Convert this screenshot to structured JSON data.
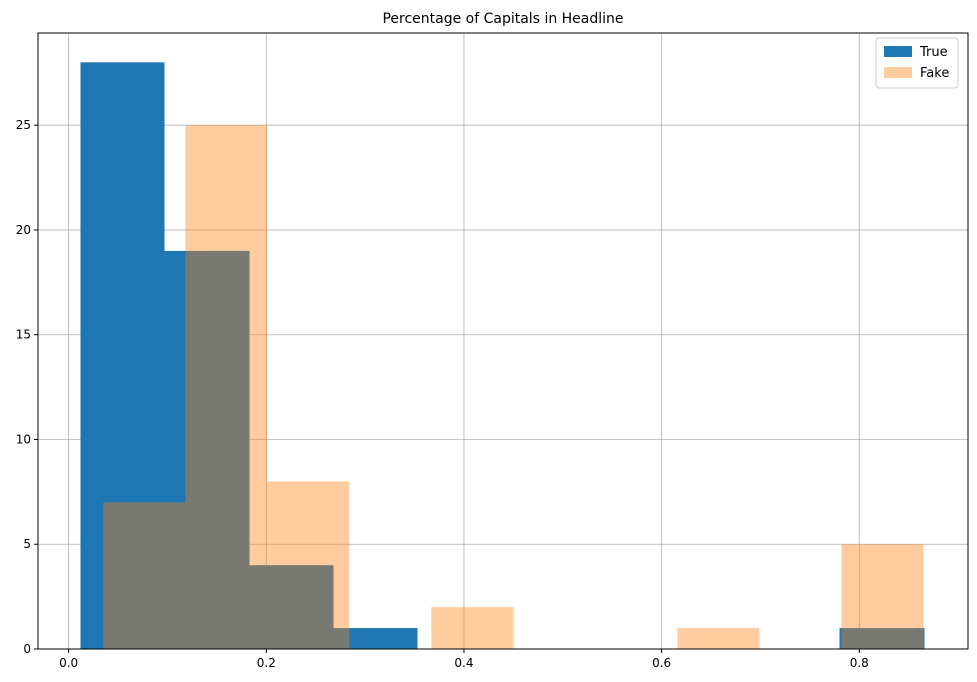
{
  "chart_data": {
    "type": "bar",
    "title": "Percentage of Capitals in Headline",
    "xlabel": "",
    "ylabel": "",
    "xlim": [
      -0.031,
      0.91
    ],
    "ylim": [
      0,
      29.4
    ],
    "grid": true,
    "legend_position": "top-right",
    "x_ticks": [
      {
        "value": 0.0,
        "label": "0.0"
      },
      {
        "value": 0.2,
        "label": "0.2"
      },
      {
        "value": 0.4,
        "label": "0.4"
      },
      {
        "value": 0.6,
        "label": "0.6"
      },
      {
        "value": 0.8,
        "label": "0.8"
      }
    ],
    "y_ticks": [
      {
        "value": 0,
        "label": "0"
      },
      {
        "value": 5,
        "label": "5"
      },
      {
        "value": 10,
        "label": "10"
      },
      {
        "value": 15,
        "label": "15"
      },
      {
        "value": 20,
        "label": "20"
      },
      {
        "value": 25,
        "label": "25"
      }
    ],
    "series": [
      {
        "name": "True",
        "color": "#1f77b4",
        "opacity": 1,
        "bins": [
          {
            "x0": 0.012,
            "x1": 0.097,
            "count": 28
          },
          {
            "x0": 0.097,
            "x1": 0.183,
            "count": 19
          },
          {
            "x0": 0.183,
            "x1": 0.268,
            "count": 4
          },
          {
            "x0": 0.268,
            "x1": 0.353,
            "count": 1
          },
          {
            "x0": 0.353,
            "x1": 0.439,
            "count": 0
          },
          {
            "x0": 0.439,
            "x1": 0.524,
            "count": 0
          },
          {
            "x0": 0.524,
            "x1": 0.609,
            "count": 0
          },
          {
            "x0": 0.609,
            "x1": 0.695,
            "count": 0
          },
          {
            "x0": 0.695,
            "x1": 0.78,
            "count": 0
          },
          {
            "x0": 0.78,
            "x1": 0.866,
            "count": 1
          }
        ]
      },
      {
        "name": "Fake",
        "color": "#ff7f0e",
        "opacity": 0.4,
        "bins": [
          {
            "x0": 0.035,
            "x1": 0.118,
            "count": 7
          },
          {
            "x0": 0.118,
            "x1": 0.201,
            "count": 25
          },
          {
            "x0": 0.201,
            "x1": 0.284,
            "count": 8
          },
          {
            "x0": 0.284,
            "x1": 0.367,
            "count": 0
          },
          {
            "x0": 0.367,
            "x1": 0.45,
            "count": 2
          },
          {
            "x0": 0.45,
            "x1": 0.533,
            "count": 0
          },
          {
            "x0": 0.533,
            "x1": 0.616,
            "count": 0
          },
          {
            "x0": 0.616,
            "x1": 0.699,
            "count": 1
          },
          {
            "x0": 0.699,
            "x1": 0.782,
            "count": 0
          },
          {
            "x0": 0.782,
            "x1": 0.865,
            "count": 5
          }
        ]
      }
    ]
  }
}
